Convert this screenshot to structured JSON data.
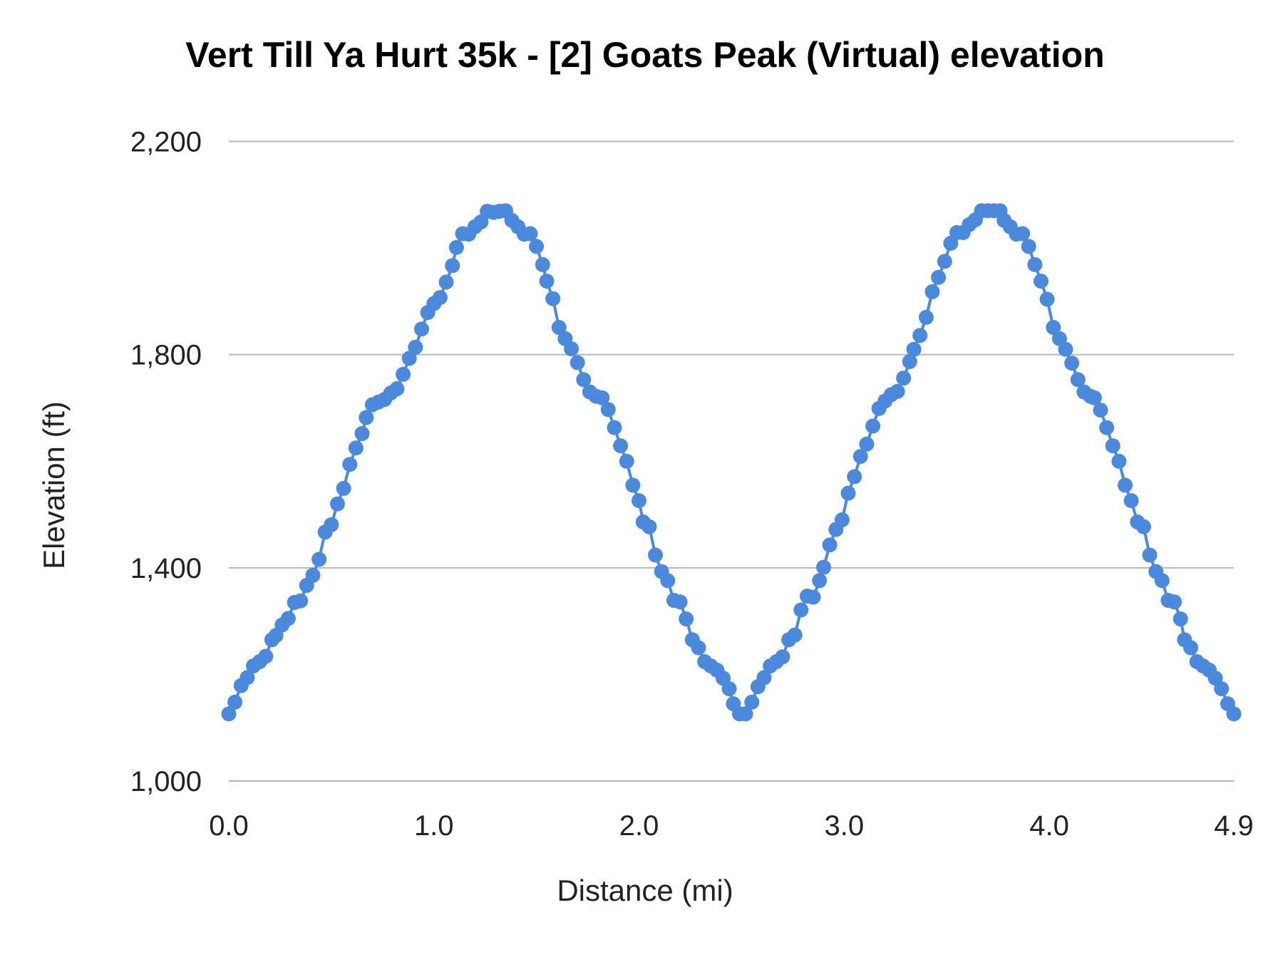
{
  "chart_data": {
    "type": "line",
    "title": "Vert Till Ya Hurt 35k - [2] Goats Peak (Virtual) elevation",
    "xlabel": "Distance (mi)",
    "ylabel": "Elevation (ft)",
    "xlim": [
      0,
      4.9
    ],
    "ylim": [
      1000,
      2200
    ],
    "x_ticks": [
      "0.0",
      "1.0",
      "2.0",
      "3.0",
      "4.0",
      "4.9"
    ],
    "x_tick_values": [
      0,
      1,
      2,
      3,
      4,
      4.9
    ],
    "y_ticks": [
      "1,000",
      "1,400",
      "1,800",
      "2,200"
    ],
    "y_tick_values": [
      1000,
      1400,
      1800,
      2200
    ],
    "grid": "horizontal",
    "markers": true,
    "color": "#4a89dc",
    "x": [
      0.0,
      0.03,
      0.06,
      0.09,
      0.12,
      0.15,
      0.18,
      0.21,
      0.23,
      0.26,
      0.29,
      0.32,
      0.35,
      0.38,
      0.41,
      0.44,
      0.47,
      0.5,
      0.53,
      0.56,
      0.59,
      0.62,
      0.65,
      0.67,
      0.7,
      0.73,
      0.76,
      0.79,
      0.82,
      0.85,
      0.88,
      0.91,
      0.94,
      0.97,
      1.0,
      1.03,
      1.06,
      1.09,
      1.11,
      1.14,
      1.17,
      1.2,
      1.23,
      1.26,
      1.29,
      1.32,
      1.35,
      1.38,
      1.41,
      1.44,
      1.47,
      1.5,
      1.53,
      1.55,
      1.58,
      1.61,
      1.64,
      1.67,
      1.7,
      1.73,
      1.76,
      1.79,
      1.82,
      1.85,
      1.88,
      1.91,
      1.94,
      1.97,
      2.0,
      2.02,
      2.05,
      2.08,
      2.11,
      2.14,
      2.17,
      2.2,
      2.23,
      2.26,
      2.29,
      2.32,
      2.35,
      2.38,
      2.41,
      2.44,
      2.46,
      2.49,
      2.52,
      2.55,
      2.58,
      2.61,
      2.64,
      2.67,
      2.7,
      2.73,
      2.76,
      2.79,
      2.82,
      2.85,
      2.88,
      2.9,
      2.93,
      2.96,
      2.99,
      3.02,
      3.05,
      3.08,
      3.11,
      3.14,
      3.17,
      3.2,
      3.23,
      3.26,
      3.29,
      3.32,
      3.34,
      3.37,
      3.4,
      3.43,
      3.46,
      3.49,
      3.52,
      3.55,
      3.58,
      3.61,
      3.64,
      3.67,
      3.7,
      3.73,
      3.76,
      3.78,
      3.81,
      3.84,
      3.87,
      3.9,
      3.93,
      3.96,
      3.99,
      4.02,
      4.05,
      4.08,
      4.11,
      4.14,
      4.17,
      4.2,
      4.22,
      4.25,
      4.28,
      4.31,
      4.34,
      4.37,
      4.4,
      4.43,
      4.46,
      4.49,
      4.52,
      4.55,
      4.58,
      4.61,
      4.64,
      4.66,
      4.69,
      4.72,
      4.75,
      4.78,
      4.81,
      4.84,
      4.87,
      4.9
    ],
    "y": [
      1126,
      1148,
      1179,
      1194,
      1216,
      1224,
      1234,
      1265,
      1273,
      1293,
      1305,
      1335,
      1338,
      1367,
      1386,
      1416,
      1467,
      1481,
      1520,
      1549,
      1594,
      1625,
      1652,
      1682,
      1706,
      1711,
      1716,
      1728,
      1736,
      1763,
      1793,
      1814,
      1848,
      1879,
      1896,
      1907,
      1936,
      1967,
      2001,
      2027,
      2026,
      2040,
      2049,
      2069,
      2067,
      2069,
      2070,
      2052,
      2040,
      2026,
      2027,
      2003,
      1969,
      1938,
      1905,
      1851,
      1830,
      1811,
      1785,
      1753,
      1730,
      1722,
      1719,
      1697,
      1663,
      1629,
      1600,
      1555,
      1526,
      1486,
      1477,
      1424,
      1393,
      1376,
      1339,
      1336,
      1304,
      1265,
      1250,
      1224,
      1216,
      1208,
      1193,
      1173,
      1145,
      1126,
      1126,
      1148,
      1177,
      1194,
      1216,
      1224,
      1233,
      1265,
      1274,
      1321,
      1347,
      1345,
      1376,
      1401,
      1443,
      1472,
      1490,
      1540,
      1571,
      1609,
      1632,
      1666,
      1699,
      1713,
      1725,
      1731,
      1756,
      1787,
      1810,
      1836,
      1870,
      1918,
      1945,
      1975,
      2009,
      2029,
      2029,
      2044,
      2053,
      2070,
      2070,
      2070,
      2070,
      2052,
      2040,
      2026,
      2027,
      2003,
      1969,
      1938,
      1904,
      1851,
      1830,
      1810,
      1784,
      1753,
      1730,
      1722,
      1719,
      1696,
      1663,
      1629,
      1600,
      1555,
      1526,
      1486,
      1477,
      1424,
      1393,
      1376,
      1339,
      1336,
      1304,
      1265,
      1250,
      1224,
      1216,
      1208,
      1193,
      1173,
      1145,
      1126
    ]
  }
}
